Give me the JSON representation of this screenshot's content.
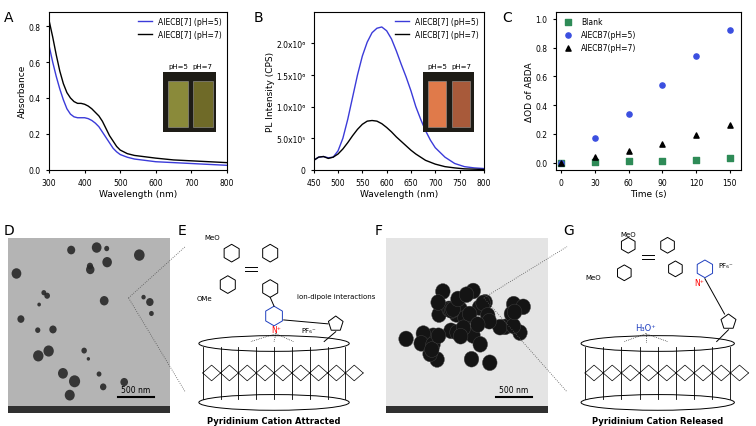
{
  "chart_data": [
    {
      "type": "line",
      "xlabel": "Wavelength (nm)",
      "ylabel": "Absorbance",
      "x": [
        300,
        310,
        320,
        330,
        340,
        350,
        360,
        370,
        380,
        390,
        400,
        410,
        420,
        430,
        440,
        450,
        460,
        470,
        480,
        490,
        500,
        520,
        540,
        560,
        580,
        600,
        650,
        700,
        750,
        800
      ],
      "series": [
        {
          "name": "AIECB[7] (pH=5)",
          "color": "#3b3bd9",
          "values": [
            0.69,
            0.6,
            0.52,
            0.45,
            0.39,
            0.34,
            0.31,
            0.295,
            0.29,
            0.29,
            0.29,
            0.285,
            0.275,
            0.26,
            0.24,
            0.21,
            0.18,
            0.15,
            0.12,
            0.1,
            0.085,
            0.07,
            0.06,
            0.055,
            0.05,
            0.045,
            0.04,
            0.035,
            0.03,
            0.025
          ]
        },
        {
          "name": "AIECB[7] (pH=7)",
          "color": "#000000",
          "values": [
            0.83,
            0.74,
            0.64,
            0.55,
            0.48,
            0.43,
            0.4,
            0.38,
            0.37,
            0.37,
            0.365,
            0.355,
            0.34,
            0.32,
            0.3,
            0.27,
            0.23,
            0.19,
            0.16,
            0.13,
            0.11,
            0.09,
            0.08,
            0.075,
            0.07,
            0.065,
            0.055,
            0.05,
            0.045,
            0.04
          ]
        }
      ],
      "xlim": [
        300,
        800
      ],
      "xticks": [
        300,
        400,
        500,
        600,
        700,
        800
      ],
      "ylim": [
        0,
        0.88
      ],
      "yticks": [
        {
          "value": 0,
          "label": "0.0"
        },
        {
          "value": 0.2,
          "label": "0.2"
        },
        {
          "value": 0.4,
          "label": "0.4"
        },
        {
          "value": 0.6,
          "label": "0.6"
        },
        {
          "value": 0.8,
          "label": "0.8"
        }
      ],
      "legend": "upper right",
      "annotations": [
        "pH=5",
        "pH=7"
      ]
    },
    {
      "type": "line",
      "xlabel": "Wavelength (nm)",
      "ylabel": "PL Intensity (CPS)",
      "x": [
        450,
        460,
        470,
        480,
        490,
        500,
        510,
        520,
        530,
        540,
        550,
        560,
        570,
        580,
        590,
        600,
        610,
        620,
        630,
        640,
        650,
        660,
        670,
        680,
        690,
        700,
        720,
        740,
        760,
        780,
        800
      ],
      "series": [
        {
          "name": "AIECB[7] (pH=5)",
          "color": "#3b3bd9",
          "values": [
            150000,
            200000,
            210000,
            190000,
            200000,
            300000,
            500000,
            800000,
            1150000,
            1500000,
            1800000,
            2020000,
            2170000,
            2240000,
            2260000,
            2200000,
            2070000,
            1880000,
            1670000,
            1470000,
            1250000,
            1000000,
            800000,
            620000,
            470000,
            350000,
            200000,
            100000,
            50000,
            30000,
            20000
          ]
        },
        {
          "name": "AIECB[7] (pH=7)",
          "color": "#000000",
          "values": [
            150000,
            200000,
            210000,
            180000,
            200000,
            250000,
            330000,
            430000,
            540000,
            640000,
            720000,
            770000,
            780000,
            770000,
            730000,
            670000,
            600000,
            520000,
            450000,
            380000,
            310000,
            250000,
            200000,
            150000,
            120000,
            90000,
            50000,
            30000,
            15000,
            10000,
            5000
          ]
        }
      ],
      "xlim": [
        450,
        800
      ],
      "xticks": [
        450,
        500,
        550,
        600,
        650,
        700,
        750,
        800
      ],
      "ylim": [
        0,
        2500000
      ],
      "yticks": [
        0,
        {
          "value": 500000,
          "label": "5.0x10⁵"
        },
        {
          "value": 1000000,
          "label": "1.0x10⁶"
        },
        {
          "value": 1500000,
          "label": "1.5x10⁶"
        },
        {
          "value": 2000000,
          "label": "2.0x10⁶"
        }
      ],
      "legend": "upper right",
      "annotations": [
        "pH=5",
        "pH=7"
      ]
    },
    {
      "type": "scatter",
      "xlabel": "Time (s)",
      "ylabel": "ΔOD of ABDA",
      "x": [
        0,
        30,
        60,
        90,
        120,
        150
      ],
      "series": [
        {
          "name": "Blank",
          "color": "#2e8b57",
          "marker": "square",
          "values": [
            0,
            0.005,
            0.01,
            0.01,
            0.02,
            0.03
          ]
        },
        {
          "name": "AIECB7(pH=5)",
          "color": "#3b4fe0",
          "marker": "circle",
          "values": [
            0,
            0.17,
            0.34,
            0.54,
            0.74,
            0.92
          ]
        },
        {
          "name": "AIECB7(pH=7)",
          "color": "#000000",
          "marker": "triangle",
          "values": [
            0,
            0.04,
            0.08,
            0.13,
            0.19,
            0.26
          ]
        }
      ],
      "xlim": [
        -5,
        160
      ],
      "xticks": [
        0,
        30,
        60,
        90,
        120,
        150
      ],
      "ylim": [
        -0.05,
        1.05
      ],
      "yticks": [
        {
          "value": 0,
          "label": "0.0"
        },
        {
          "value": 0.2,
          "label": "0.2"
        },
        {
          "value": 0.4,
          "label": "0.4"
        },
        {
          "value": 0.6,
          "label": "0.6"
        },
        {
          "value": 0.8,
          "label": "0.8"
        },
        {
          "value": 1.0,
          "label": "1.0"
        }
      ],
      "legend": "upper left"
    }
  ],
  "panels": {
    "labels": [
      "A",
      "B",
      "C",
      "D",
      "E",
      "F",
      "G"
    ],
    "D": {
      "scale_bar": "500 nm"
    },
    "E": {
      "methoxy": [
        "MeO",
        "OMe"
      ],
      "nitrogen": "N⁺",
      "anion": "PF₆⁻",
      "note": "ion-dipole interactions",
      "caption": "Pyridinium Cation Attracted"
    },
    "F": {
      "scale_bar": "500 nm"
    },
    "G": {
      "methoxy": [
        "MeO",
        "MeO"
      ],
      "nitrogen": "N⁺",
      "anion": "PF₆⁻",
      "guest": "H₃O⁺",
      "caption": "Pyridinium Cation Released"
    }
  }
}
